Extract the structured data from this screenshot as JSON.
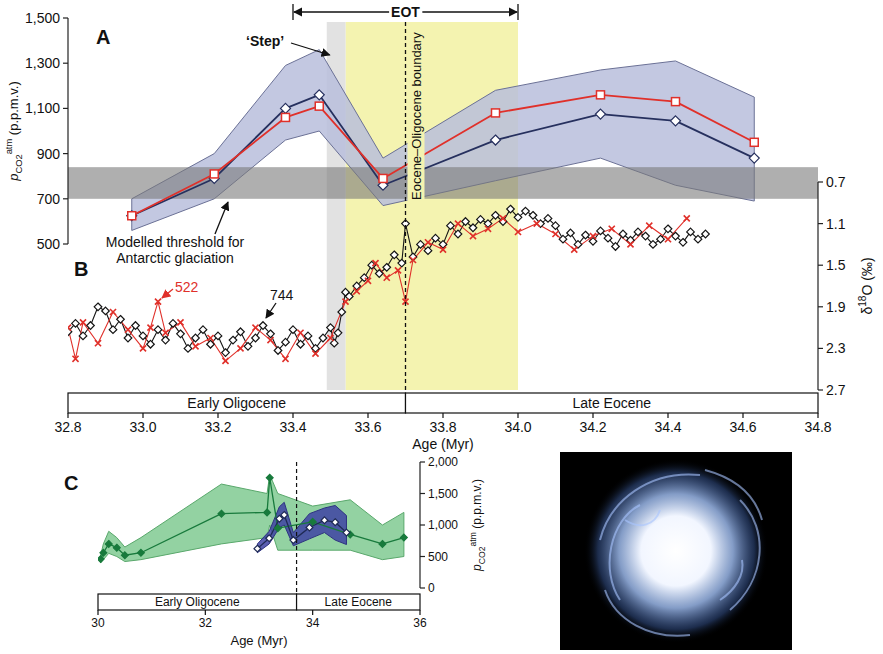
{
  "chart_data": [
    {
      "type": "line",
      "panel_labels": [
        "A",
        "B"
      ],
      "xlabel": "Age (Myr)",
      "xlim": [
        32.8,
        34.8
      ],
      "xticks": [
        32.8,
        {
          "value": 33,
          "label": "33.0"
        },
        33.2,
        33.4,
        33.6,
        33.8,
        {
          "value": 34,
          "label": "34.0"
        },
        34.2,
        34.4,
        34.6,
        34.8
      ],
      "ylabel": [
        "p",
        "CO2",
        "atm",
        " (p.p.m.v.)"
      ],
      "ylim": [
        500,
        1500
      ],
      "yticks": [
        500,
        700,
        900,
        {
          "value": 1100,
          "label": "1,100"
        },
        {
          "value": 1300,
          "label": "1,300"
        },
        {
          "value": 1500,
          "label": "1,500"
        }
      ],
      "y2label": [
        "δ",
        "18",
        "O (‰)"
      ],
      "y2lim": [
        2.7,
        0.7
      ],
      "y2ticks": [
        0.7,
        1.1,
        1.5,
        1.9,
        2.3,
        2.7
      ],
      "threshold": {
        "range": [
          700,
          840
        ],
        "label": "Modelled threshold for Antarctic glaciation"
      },
      "eot": {
        "label": "EOT",
        "range": [
          33.4,
          34.0
        ]
      },
      "step": {
        "label": "‘Step’",
        "range": [
          33.49,
          33.54
        ]
      },
      "highlight": [
        33.54,
        34.0
      ],
      "boundary": {
        "x": 33.7,
        "label": "Eocene–Oligocene boundary"
      },
      "epochs": [
        {
          "label": "Early Oligocene",
          "range": [
            32.8,
            33.7
          ]
        },
        {
          "label": "Late Eocene",
          "range": [
            33.7,
            34.8
          ]
        }
      ],
      "series": [
        {
          "color": "#26305e",
          "marker": "diamond",
          "x": [
            32.97,
            33.19,
            33.38,
            33.47,
            33.64,
            33.94,
            34.22,
            34.42,
            34.63
          ],
          "values": [
            625,
            790,
            1100,
            1160,
            760,
            960,
            1075,
            1045,
            880
          ],
          "low": [
            560,
            700,
            960,
            1000,
            670,
            780,
            880,
            760,
            690
          ],
          "high": [
            700,
            900,
            1290,
            1360,
            880,
            1180,
            1270,
            1310,
            1150
          ]
        },
        {
          "color": "#e0302a",
          "marker": "square",
          "x": [
            32.97,
            33.19,
            33.38,
            33.47,
            33.64,
            33.94,
            34.22,
            34.42,
            34.63
          ],
          "values": [
            625,
            810,
            1060,
            1110,
            790,
            1080,
            1160,
            1130,
            950
          ]
        },
        {
          "name": "744",
          "axis": "y2",
          "color": "#151515",
          "marker": "diamond",
          "x": [
            32.8,
            32.82,
            32.84,
            32.86,
            32.88,
            32.9,
            32.92,
            32.94,
            32.96,
            32.98,
            33,
            33.02,
            33.04,
            33.06,
            33.08,
            33.1,
            33.12,
            33.14,
            33.16,
            33.18,
            33.2,
            33.22,
            33.24,
            33.26,
            33.28,
            33.3,
            33.32,
            33.34,
            33.36,
            33.38,
            33.4,
            33.42,
            33.44,
            33.46,
            33.48,
            33.5,
            33.51,
            33.52,
            33.53,
            33.54,
            33.55,
            33.57,
            33.59,
            33.61,
            33.63,
            33.65,
            33.67,
            33.69,
            33.7,
            33.72,
            33.74,
            33.76,
            33.78,
            33.8,
            33.82,
            33.84,
            33.86,
            33.88,
            33.9,
            33.92,
            33.94,
            33.96,
            33.98,
            34,
            34.02,
            34.04,
            34.06,
            34.08,
            34.1,
            34.12,
            34.14,
            34.16,
            34.18,
            34.2,
            34.22,
            34.24,
            34.26,
            34.28,
            34.3,
            34.32,
            34.34,
            34.36,
            34.38,
            34.4,
            34.42,
            34.44,
            34.46,
            34.48,
            34.5
          ],
          "values": [
            2.14,
            2.06,
            2.18,
            2.08,
            1.9,
            1.94,
            2.12,
            2.02,
            2.2,
            2.08,
            2.18,
            2.26,
            2.12,
            2.22,
            2.06,
            2.16,
            2.3,
            2.2,
            2.12,
            2.26,
            2.18,
            2.34,
            2.22,
            2.14,
            2.28,
            2.2,
            2.08,
            2.16,
            2.32,
            2.24,
            2.12,
            2.26,
            2.18,
            2.3,
            2.2,
            2.1,
            2.25,
            2.15,
            1.95,
            1.76,
            1.8,
            1.7,
            1.62,
            1.5,
            1.58,
            1.52,
            1.4,
            1.48,
            1.1,
            1.42,
            1.3,
            1.36,
            1.24,
            1.3,
            1.12,
            1.2,
            1.08,
            1.14,
            1.06,
            1.1,
            1.02,
            1.08,
            0.96,
            1.04,
            0.98,
            1.02,
            1.1,
            1.05,
            1.12,
            1.25,
            1.19,
            1.3,
            1.21,
            1.27,
            1.17,
            1.24,
            1.32,
            1.2,
            1.26,
            1.18,
            1.22,
            1.3,
            1.25,
            1.15,
            1.22,
            1.28,
            1.18,
            1.25,
            1.2
          ]
        },
        {
          "name": "522",
          "axis": "y2",
          "color": "#e0302a",
          "marker": "x",
          "x": [
            32.8,
            32.82,
            32.84,
            32.88,
            32.92,
            32.96,
            33,
            33.02,
            33.04,
            33.06,
            33.1,
            33.14,
            33.18,
            33.22,
            33.26,
            33.3,
            33.34,
            33.38,
            33.42,
            33.46,
            33.5,
            33.54,
            33.57,
            33.6,
            33.62,
            33.65,
            33.68,
            33.7,
            33.72,
            33.76,
            33.8,
            33.84,
            33.88,
            33.92,
            33.96,
            34,
            34.05,
            34.1,
            34.15,
            34.2,
            34.25,
            34.3,
            34.35,
            34.4,
            34.45
          ],
          "values": [
            2.1,
            2.4,
            2.05,
            2.25,
            1.95,
            2.12,
            2.3,
            2.1,
            1.85,
            2.15,
            2.05,
            2.28,
            2.2,
            2.42,
            2.3,
            2.1,
            2.22,
            2.4,
            2.15,
            2.35,
            2.2,
            1.85,
            1.75,
            1.65,
            1.48,
            1.62,
            1.55,
            1.85,
            1.45,
            1.28,
            1.35,
            1.1,
            1.22,
            1.15,
            1.05,
            1.18,
            1.1,
            1.2,
            1.35,
            1.22,
            1.15,
            1.3,
            1.12,
            1.25,
            1.05
          ]
        }
      ]
    },
    {
      "type": "line",
      "panel_label": "C",
      "xlabel": "Age (Myr)",
      "xlim": [
        30,
        36
      ],
      "xticks": [
        30,
        32,
        34,
        36
      ],
      "ylabel": [
        "p",
        "CO2",
        "atm",
        " (p.p.m.v.)"
      ],
      "ylim": [
        0,
        2000
      ],
      "yticks": [
        0,
        500,
        {
          "value": 1000,
          "label": "1,000"
        },
        {
          "value": 1500,
          "label": "1,500"
        },
        {
          "value": 2000,
          "label": "2,000"
        }
      ],
      "boundary": {
        "x": 33.7
      },
      "epochs": [
        {
          "label": "Early Oligocene",
          "range": [
            30,
            33.7
          ]
        },
        {
          "label": "Late Eocene",
          "range": [
            33.7,
            36
          ]
        }
      ],
      "series": [
        {
          "color": "#187a3c",
          "marker": "filled-diamond",
          "x": [
            30.05,
            30.1,
            30.2,
            30.35,
            30.5,
            30.8,
            32.3,
            33.15,
            33.2,
            33.35,
            34,
            34.7,
            35.3,
            35.7
          ],
          "values": [
            460,
            560,
            700,
            640,
            520,
            560,
            1180,
            1200,
            1750,
            950,
            1050,
            850,
            700,
            800
          ],
          "low": [
            400,
            450,
            550,
            500,
            420,
            450,
            700,
            800,
            1000,
            600,
            600,
            600,
            450,
            500
          ],
          "high": [
            520,
            700,
            900,
            800,
            650,
            800,
            1650,
            1500,
            1800,
            1500,
            1300,
            1400,
            1000,
            1200
          ]
        },
        {
          "color": "#1f2a55",
          "marker": "diamond",
          "x": [
            32.97,
            33.19,
            33.38,
            33.47,
            33.64,
            33.94,
            34.22,
            34.42,
            34.63
          ],
          "values": [
            625,
            790,
            1100,
            1160,
            760,
            960,
            1075,
            1045,
            880
          ],
          "low": [
            560,
            700,
            960,
            1000,
            670,
            780,
            880,
            760,
            690
          ],
          "high": [
            700,
            900,
            1290,
            1360,
            880,
            1180,
            1270,
            1310,
            1150
          ]
        }
      ]
    }
  ]
}
